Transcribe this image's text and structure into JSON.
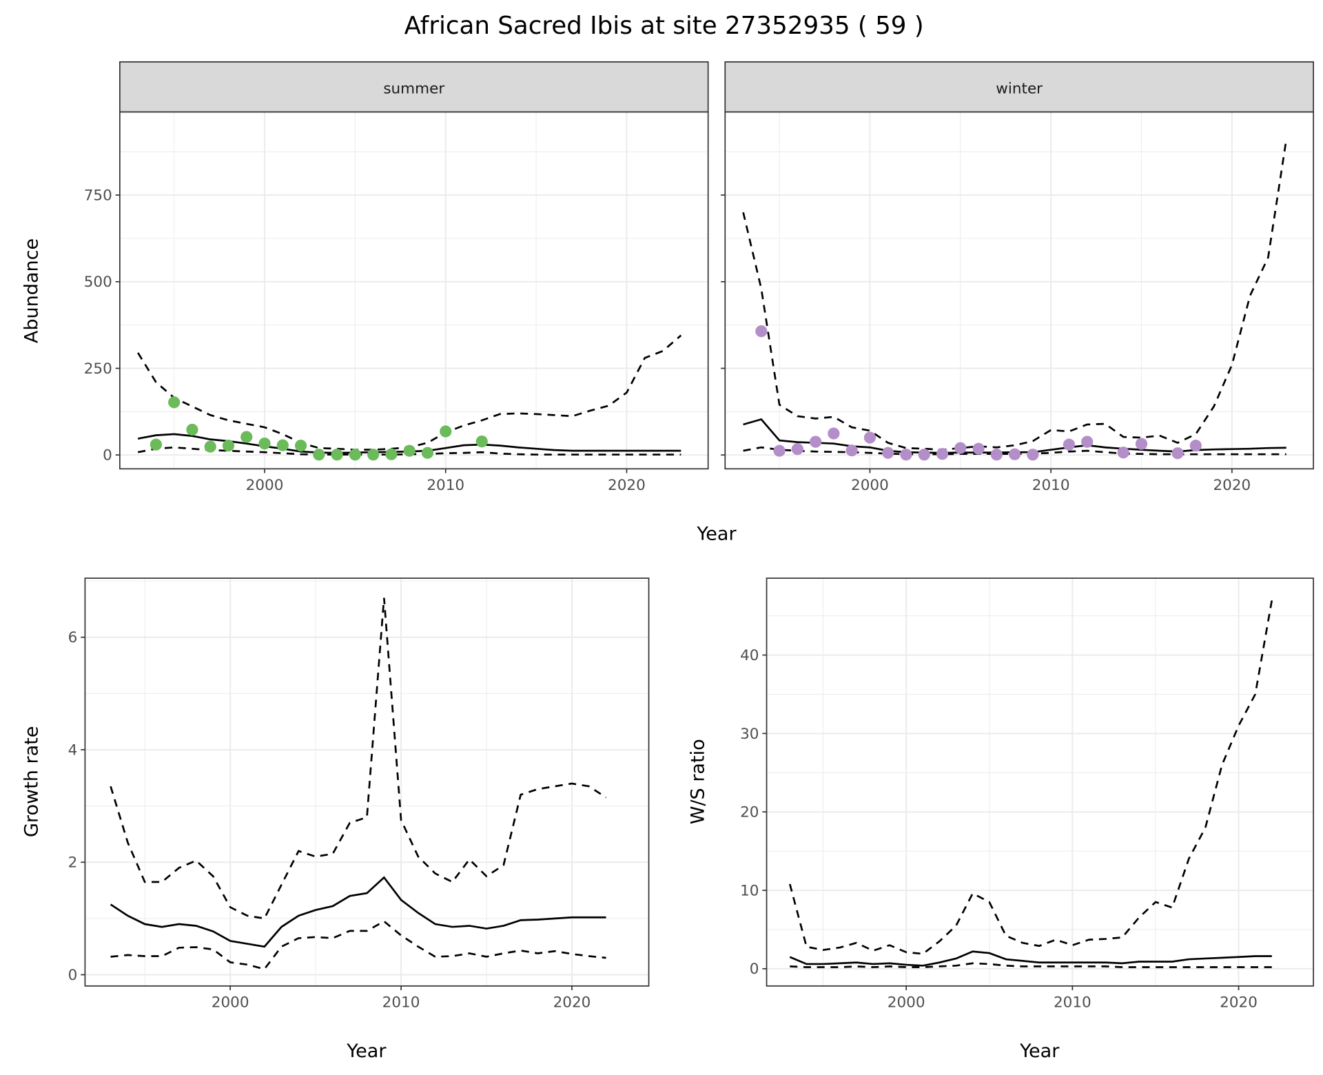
{
  "title": "African Sacred Ibis at site 27352935 ( 59 )",
  "chart_data": [
    {
      "id": "abundance",
      "type": "line",
      "facets": [
        "summer",
        "winter"
      ],
      "xlabel": "Year",
      "ylabel": "Abundance",
      "xlim": [
        1992,
        2024.5
      ],
      "ylim": [
        -40,
        990
      ],
      "xticks": [
        2000,
        2010,
        2020
      ],
      "yticks": [
        0,
        250,
        500,
        750
      ],
      "x": [
        1993,
        1994,
        1995,
        1996,
        1997,
        1998,
        1999,
        2000,
        2001,
        2002,
        2003,
        2004,
        2005,
        2006,
        2007,
        2008,
        2009,
        2010,
        2011,
        2012,
        2013,
        2014,
        2015,
        2016,
        2017,
        2018,
        2019,
        2020,
        2021,
        2022,
        2023
      ],
      "panels": {
        "summer": {
          "point_color": "#6bbb5a",
          "mean": [
            47,
            57,
            60,
            55,
            45,
            40,
            33,
            25,
            18,
            10,
            7,
            6,
            7,
            8,
            9,
            10,
            12,
            20,
            28,
            30,
            27,
            22,
            18,
            14,
            12,
            12,
            12,
            12,
            12,
            12,
            12
          ],
          "upper": [
            295,
            210,
            165,
            140,
            115,
            100,
            90,
            80,
            60,
            35,
            20,
            18,
            15,
            15,
            18,
            22,
            35,
            65,
            85,
            100,
            118,
            120,
            118,
            115,
            112,
            128,
            142,
            180,
            280,
            300,
            345
          ],
          "lower": [
            8,
            18,
            22,
            18,
            14,
            12,
            10,
            8,
            5,
            2,
            1,
            1,
            1,
            1,
            1,
            2,
            3,
            5,
            6,
            8,
            4,
            2,
            1,
            1,
            1,
            1,
            1,
            1,
            1,
            1,
            1
          ],
          "points": {
            "x": [
              1994,
              1995,
              1996,
              1997,
              1998,
              1999,
              2000,
              2001,
              2002,
              2003,
              2004,
              2005,
              2006,
              2007,
              2008,
              2009,
              2010,
              2012
            ],
            "y": [
              30,
              152,
              73,
              24,
              27,
              52,
              33,
              28,
              27,
              1,
              1,
              1,
              1,
              2,
              12,
              6,
              68,
              39
            ]
          }
        },
        "winter": {
          "point_color": "#b48ec8",
          "mean": [
            88,
            103,
            42,
            37,
            35,
            33,
            25,
            22,
            12,
            8,
            7,
            6,
            7,
            7,
            7,
            8,
            8,
            15,
            22,
            28,
            22,
            18,
            15,
            12,
            10,
            14,
            16,
            17,
            18,
            20,
            21
          ],
          "upper": [
            700,
            480,
            145,
            112,
            105,
            110,
            80,
            70,
            35,
            20,
            18,
            15,
            20,
            25,
            22,
            28,
            40,
            72,
            68,
            88,
            90,
            52,
            50,
            56,
            35,
            60,
            140,
            260,
            460,
            570,
            910
          ],
          "lower": [
            12,
            22,
            15,
            12,
            10,
            9,
            8,
            6,
            4,
            2,
            2,
            2,
            3,
            3,
            3,
            3,
            4,
            6,
            10,
            12,
            8,
            4,
            3,
            2,
            2,
            2,
            2,
            2,
            2,
            2,
            2
          ],
          "points": {
            "x": [
              1994,
              1995,
              1996,
              1997,
              1998,
              1999,
              2000,
              2001,
              2002,
              2003,
              2004,
              2005,
              2006,
              2007,
              2008,
              2009,
              2011,
              2012,
              2014,
              2015,
              2017,
              2018
            ],
            "y": [
              357,
              12,
              17,
              38,
              62,
              13,
              50,
              6,
              1,
              1,
              3,
              20,
              18,
              1,
              2,
              1,
              30,
              38,
              7,
              32,
              5,
              27
            ]
          }
        }
      }
    },
    {
      "id": "growth",
      "type": "line",
      "xlabel": "Year",
      "ylabel": "Growth rate",
      "xlim": [
        1991.5,
        2024.5
      ],
      "ylim": [
        -0.2,
        7.05
      ],
      "xticks": [
        2000,
        2010,
        2020
      ],
      "yticks": [
        0,
        2,
        4,
        6
      ],
      "x": [
        1993,
        1994,
        1995,
        1996,
        1997,
        1998,
        1999,
        2000,
        2001,
        2002,
        2003,
        2004,
        2005,
        2006,
        2007,
        2008,
        2009,
        2010,
        2011,
        2012,
        2013,
        2014,
        2015,
        2016,
        2017,
        2018,
        2019,
        2020,
        2021,
        2022
      ],
      "mean": [
        1.25,
        1.05,
        0.9,
        0.85,
        0.9,
        0.87,
        0.77,
        0.6,
        0.55,
        0.5,
        0.85,
        1.05,
        1.15,
        1.22,
        1.4,
        1.45,
        1.73,
        1.33,
        1.1,
        0.9,
        0.85,
        0.87,
        0.82,
        0.87,
        0.97,
        0.98,
        1.0,
        1.02,
        1.02,
        1.02
      ],
      "upper": [
        3.35,
        2.35,
        1.65,
        1.65,
        1.9,
        2.03,
        1.75,
        1.2,
        1.05,
        1.0,
        1.6,
        2.2,
        2.1,
        2.15,
        2.7,
        2.8,
        6.7,
        2.75,
        2.1,
        1.8,
        1.65,
        2.05,
        1.75,
        1.95,
        3.2,
        3.3,
        3.35,
        3.4,
        3.35,
        3.15
      ],
      "lower": [
        0.32,
        0.35,
        0.33,
        0.33,
        0.48,
        0.49,
        0.45,
        0.22,
        0.18,
        0.1,
        0.5,
        0.65,
        0.67,
        0.65,
        0.78,
        0.78,
        0.95,
        0.7,
        0.5,
        0.32,
        0.33,
        0.38,
        0.32,
        0.38,
        0.43,
        0.38,
        0.42,
        0.37,
        0.33,
        0.3
      ]
    },
    {
      "id": "ratio",
      "type": "line",
      "xlabel": "Year",
      "ylabel": "W/S ratio",
      "xlim": [
        1991.6,
        2024.5
      ],
      "ylim": [
        -2.2,
        49.8
      ],
      "xticks": [
        2000,
        2010,
        2020
      ],
      "yticks": [
        0,
        10,
        20,
        30,
        40
      ],
      "x": [
        1993,
        1994,
        1995,
        1996,
        1997,
        1998,
        1999,
        2000,
        2001,
        2002,
        2003,
        2004,
        2005,
        2006,
        2007,
        2008,
        2009,
        2010,
        2011,
        2012,
        2013,
        2014,
        2015,
        2016,
        2017,
        2018,
        2019,
        2020,
        2021,
        2022
      ],
      "mean": [
        1.5,
        0.6,
        0.6,
        0.7,
        0.8,
        0.6,
        0.7,
        0.5,
        0.4,
        0.8,
        1.3,
        2.2,
        2.0,
        1.2,
        1.0,
        0.8,
        0.8,
        0.8,
        0.8,
        0.8,
        0.7,
        0.9,
        0.9,
        0.9,
        1.2,
        1.3,
        1.4,
        1.5,
        1.6,
        1.6
      ],
      "upper": [
        10.8,
        2.8,
        2.4,
        2.7,
        3.3,
        2.3,
        3.0,
        2.1,
        1.9,
        3.5,
        5.5,
        9.6,
        8.5,
        4.2,
        3.3,
        2.9,
        3.7,
        3.0,
        3.7,
        3.8,
        4.0,
        6.5,
        8.5,
        7.8,
        14,
        18,
        26,
        31,
        35,
        47
      ],
      "lower": [
        0.3,
        0.2,
        0.2,
        0.2,
        0.3,
        0.2,
        0.3,
        0.2,
        0.2,
        0.3,
        0.4,
        0.7,
        0.6,
        0.4,
        0.3,
        0.3,
        0.3,
        0.3,
        0.3,
        0.3,
        0.2,
        0.2,
        0.2,
        0.2,
        0.2,
        0.2,
        0.2,
        0.2,
        0.2,
        0.2
      ]
    }
  ]
}
